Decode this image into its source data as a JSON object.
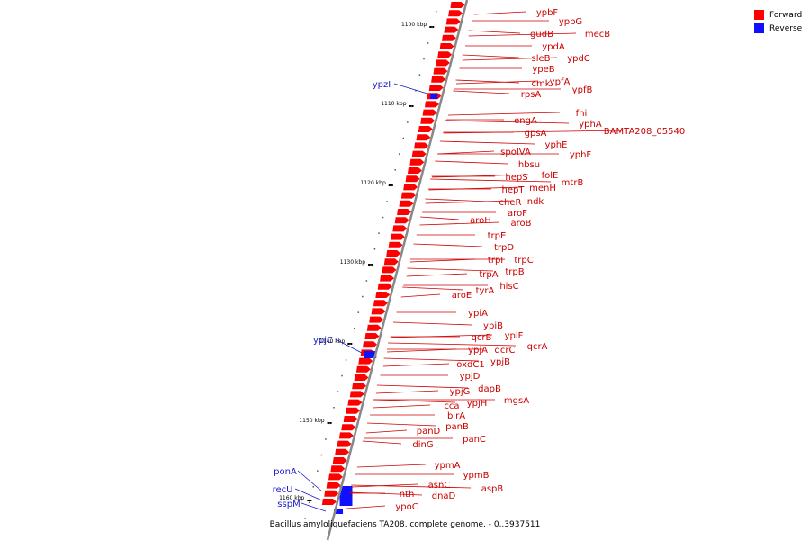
{
  "caption": "Bacillus amyloliquefaciens TA208, complete genome. - 0..3937511",
  "legend": {
    "forward": {
      "label": "Forward",
      "color": "#ff0000"
    },
    "reverse": {
      "label": "Reverse",
      "color": "#1010ff"
    }
  },
  "colors": {
    "forward_label": "#cc0000",
    "reverse_label": "#1a1acc",
    "backbone": "#888888"
  },
  "ticks": [
    "1100 kbp",
    "1110 kbp",
    "1120 kbp",
    "1130 kbp",
    "1140 kbp",
    "1150 kbp",
    "1160 kbp"
  ],
  "forward_genes": [
    "ypbF",
    "ypbG",
    "gudB",
    "mecB",
    "ypdA",
    "sleB",
    "ypdC",
    "ypeB",
    "cmk",
    "ypfA",
    "ypfB",
    "rpsA",
    "fni",
    "engA",
    "yphA",
    "BAMTA208_05540",
    "gpsA",
    "yphE",
    "spoIVA",
    "yphF",
    "hbsu",
    "folE",
    "hepS",
    "mtrB",
    "menH",
    "hepT",
    "cheR",
    "ndk",
    "aroF",
    "aroH",
    "aroB",
    "trpE",
    "trpD",
    "trpF",
    "trpC",
    "trpB",
    "trpA",
    "hisC",
    "tyrA",
    "aroE",
    "ypiA",
    "ypiB",
    "ypiF",
    "qcrB",
    "qcrA",
    "ypjA",
    "qcrC",
    "ypjB",
    "oxdC1",
    "ypjD",
    "dapB",
    "ypjG",
    "mgsA",
    "ypjH",
    "cca",
    "birA",
    "panB",
    "panD",
    "panC",
    "dinG",
    "ypmA",
    "ypmB",
    "aspB",
    "asnC",
    "nth",
    "dnaD",
    "ypoC"
  ],
  "reverse_genes": [
    "ypzI",
    "ypjC",
    "ponA",
    "recU",
    "sspM"
  ]
}
